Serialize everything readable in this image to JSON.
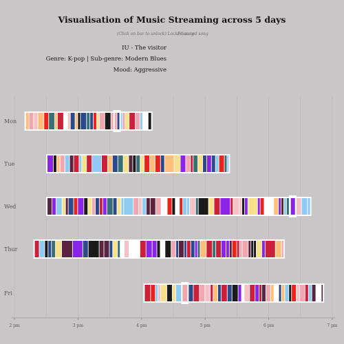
{
  "title": "Visualisation of Music Streaming across 5 days",
  "hint_click": "(Click on bar to unlock) Locked song",
  "hint_fav": "Favoured song",
  "selected_song": {
    "name": "IU - The visitor",
    "genre_line": "Genre: K-pop  |  Sub-genre: Modern Blues",
    "mood_line": "Mood: Aggressive"
  },
  "chart_data": {
    "type": "timeline",
    "title": "Visualisation of Music Streaming across 5 days",
    "x_ticks": [
      "2 pm",
      "3 pm",
      "4 pm",
      "5 pm",
      "6 pm",
      "7 pm"
    ],
    "x_range_hours": [
      14,
      19
    ],
    "grid": true,
    "rows": [
      {
        "day": "Mon",
        "start": 14.18,
        "end": 16.15,
        "seed": 3,
        "highlight": 0.72
      },
      {
        "day": "Tue",
        "start": 14.52,
        "end": 17.37,
        "seed": 11,
        "highlight": null
      },
      {
        "day": "Wed",
        "start": 14.52,
        "end": 18.65,
        "seed": 7,
        "highlight": 0.93
      },
      {
        "day": "Thur",
        "start": 14.32,
        "end": 18.23,
        "seed": 19,
        "highlight": null
      },
      {
        "day": "Fri",
        "start": 16.05,
        "end": 18.85,
        "seed": 5,
        "highlight": 0.22
      }
    ]
  },
  "palette": [
    "#e8251d",
    "#8a24e6",
    "#1a1a1a",
    "#5a2440",
    "#ffbf7a",
    "#8fcaf2",
    "#f4c2c6",
    "#2a4a8c",
    "#f7e08a",
    "#ffffff",
    "#c9213a",
    "#3a6f73",
    "#f2a6b0"
  ]
}
